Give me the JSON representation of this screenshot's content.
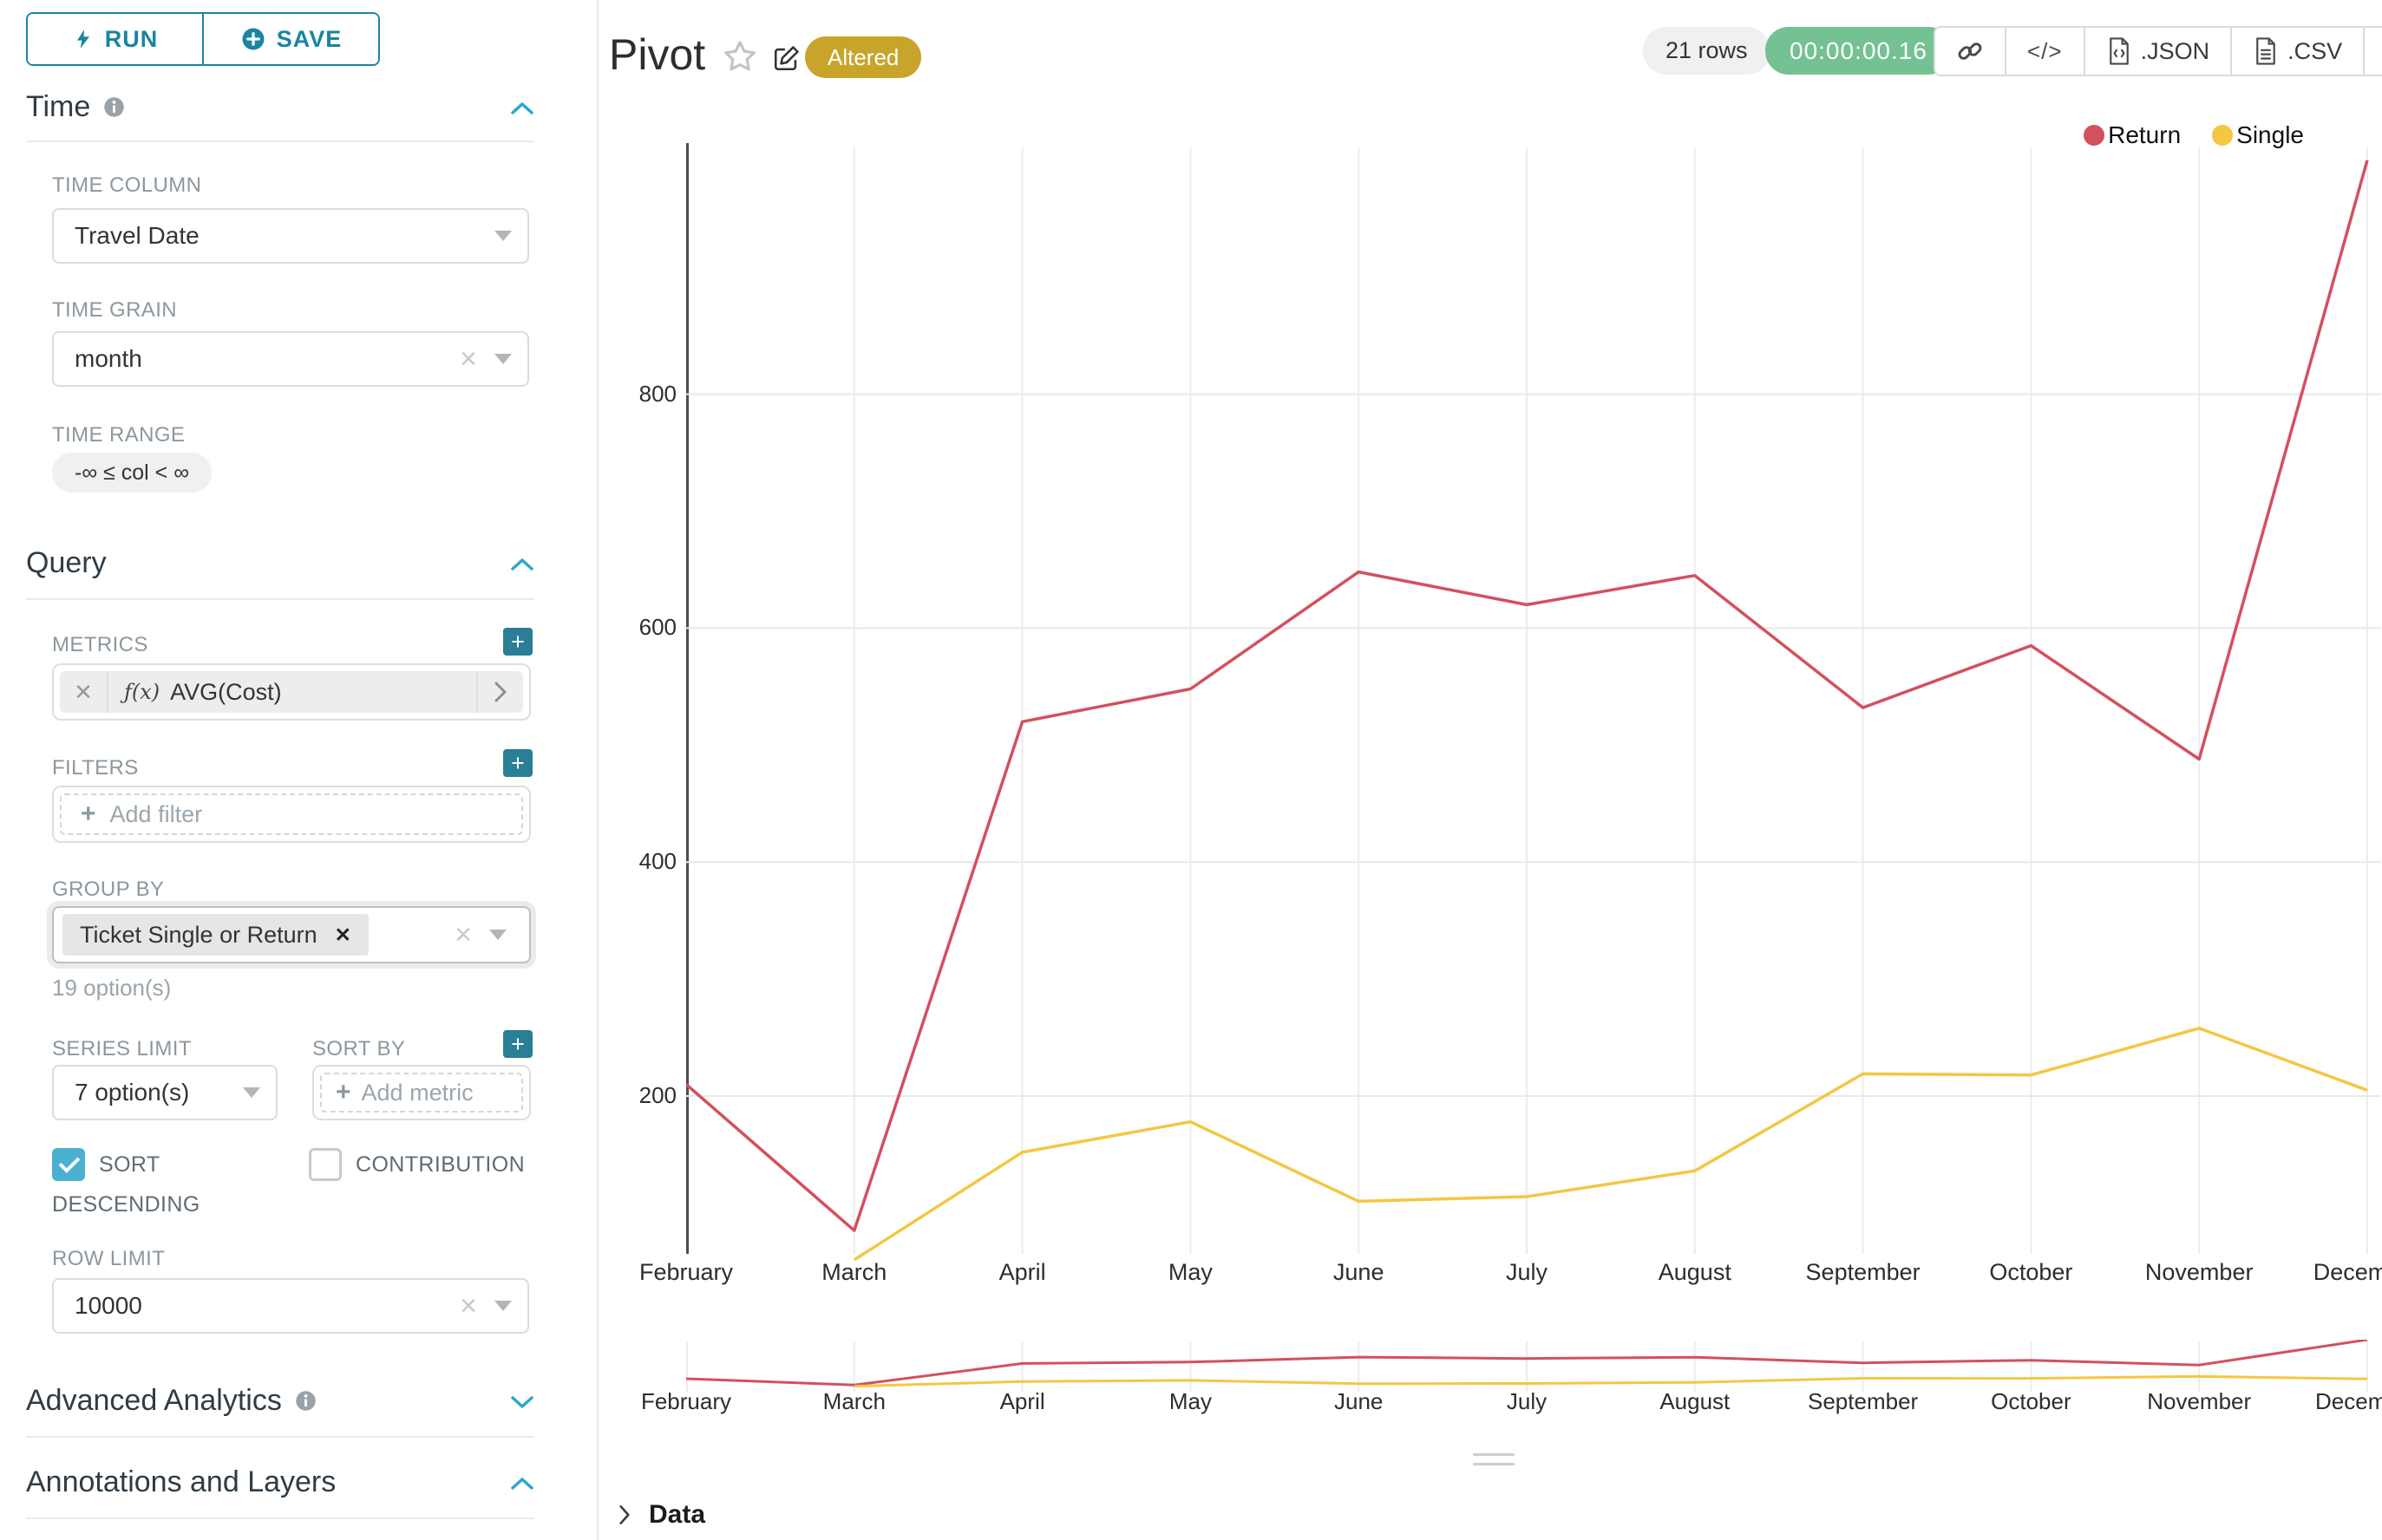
{
  "sidebar": {
    "run_button": "RUN",
    "save_button": "SAVE",
    "time_section": {
      "title": "Time"
    },
    "time_column": {
      "label": "TIME COLUMN",
      "value": "Travel Date"
    },
    "time_grain": {
      "label": "TIME GRAIN",
      "value": "month"
    },
    "time_range": {
      "label": "TIME RANGE",
      "value": "-∞ ≤ col < ∞"
    },
    "query_section": {
      "title": "Query"
    },
    "metrics": {
      "label": "METRICS",
      "fx": "ƒ(x)",
      "value": "AVG(Cost)"
    },
    "filters": {
      "label": "FILTERS",
      "placeholder": "Add filter"
    },
    "group_by": {
      "label": "GROUP BY",
      "tag": "Ticket Single or Return",
      "options_hint": "19 option(s)"
    },
    "series_limit": {
      "label": "SERIES LIMIT",
      "value": "7 option(s)"
    },
    "sort_by": {
      "label": "SORT BY",
      "placeholder": "Add metric"
    },
    "sort_descending": {
      "label": "SORT DESCENDING",
      "checked": true
    },
    "contribution": {
      "label": "CONTRIBUTION",
      "checked": false
    },
    "row_limit": {
      "label": "ROW LIMIT",
      "value": "10000"
    },
    "advanced_analytics": {
      "title": "Advanced Analytics"
    },
    "annotations": {
      "title": "Annotations and Layers"
    }
  },
  "header": {
    "title": "Pivot",
    "altered_badge": "Altered",
    "rows_badge": "21 rows",
    "timer_badge": "00:00:00.16",
    "toolbar": {
      "code_glyph": "</>",
      "json_label": ".JSON",
      "csv_label": ".CSV"
    }
  },
  "chart_data": {
    "type": "line",
    "title": "Pivot",
    "categories": [
      "February",
      "March",
      "April",
      "May",
      "June",
      "July",
      "August",
      "September",
      "October",
      "November",
      "December"
    ],
    "series": [
      {
        "name": "Return",
        "color": "#d3505e",
        "values": [
          210,
          85,
          520,
          548,
          648,
          620,
          645,
          532,
          585,
          488,
          1000
        ]
      },
      {
        "name": "Single",
        "color": "#f4c642",
        "values": [
          null,
          60,
          152,
          178,
          110,
          114,
          136,
          219,
          218,
          258,
          205
        ]
      }
    ],
    "ylabel": "",
    "xlabel": "",
    "y_ticks": [
      200,
      400,
      600,
      800
    ],
    "ylim": [
      40,
      1010
    ],
    "grid": true,
    "legend_position": "top-right",
    "has_range_selector_minichart": true
  },
  "footer": {
    "data_label": "Data"
  },
  "colors": {
    "primary_teal": "#1a85a0",
    "accent_blue": "#2ba8cb",
    "altered_gold": "#c9a42a",
    "timer_green": "#74c193",
    "return_red": "#d3505e",
    "single_yellow": "#f4c642"
  }
}
